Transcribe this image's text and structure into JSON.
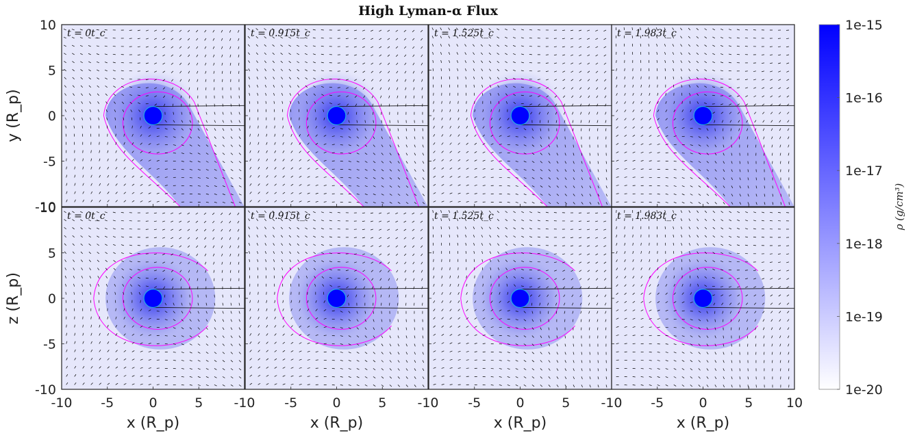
{
  "chart_data": {
    "type": "heatmap",
    "title": "High Lyman-α Flux",
    "panel_times": [
      "t = 0t_c",
      "t = 0.915t_c",
      "t = 1.525t_c",
      "t = 1.983t_c"
    ],
    "rows": [
      {
        "plane": "x-y",
        "ylabel": "y (R_p)"
      },
      {
        "plane": "x-z",
        "ylabel": "z (R_p)"
      }
    ],
    "xlabel": "x (R_p)",
    "xlim": [
      -10,
      10
    ],
    "ylim": [
      -10,
      10
    ],
    "x_ticks": [
      "-10",
      "-5",
      "0",
      "5",
      "10"
    ],
    "y_ticks": [
      "10",
      "5",
      "0",
      "-5",
      "-10"
    ],
    "colorbar": {
      "label": "ρ (g/cm³)",
      "scale": "log",
      "range": [
        1e-20,
        1e-15
      ],
      "ticks": [
        "1e-15",
        "1e-16",
        "1e-17",
        "1e-18",
        "1e-19",
        "1e-20"
      ],
      "color_low": "#ffffff",
      "color_high": "#0000ff"
    },
    "planet": {
      "x": 0,
      "y": 0,
      "radius": 1,
      "color": "#0000ff"
    },
    "contour_color": "#ff00ff",
    "vector_color": "#000000"
  }
}
